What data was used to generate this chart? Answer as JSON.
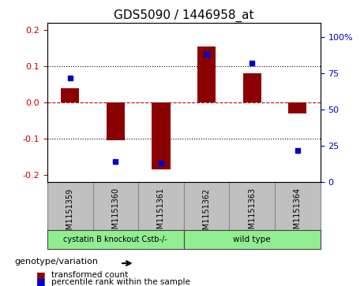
{
  "title": "GDS5090 / 1446958_at",
  "samples": [
    "GSM1151359",
    "GSM1151360",
    "GSM1151361",
    "GSM1151362",
    "GSM1151363",
    "GSM1151364"
  ],
  "transformed_count": [
    0.04,
    -0.105,
    -0.185,
    0.155,
    0.08,
    -0.03
  ],
  "percentile_rank": [
    72,
    14,
    13,
    88,
    82,
    22
  ],
  "ylim_left": [
    -0.22,
    0.22
  ],
  "ylim_right": [
    0,
    110
  ],
  "yticks_left": [
    -0.2,
    -0.1,
    0.0,
    0.1,
    0.2
  ],
  "yticks_right": [
    0,
    25,
    50,
    75,
    100
  ],
  "ytick_labels_right": [
    "0",
    "25",
    "50",
    "75",
    "100%"
  ],
  "groups": [
    {
      "label": "cystatin B knockout Cstb-/-",
      "samples": [
        0,
        1,
        2
      ],
      "color": "#90EE90"
    },
    {
      "label": "wild type",
      "samples": [
        3,
        4,
        5
      ],
      "color": "#90EE90"
    }
  ],
  "group_colors": [
    "#90EE90",
    "#90EE90"
  ],
  "bar_color": "#8B0000",
  "dot_color": "#0000CD",
  "bar_width": 0.4,
  "zero_line_color": "#CC0000",
  "grid_color": "black",
  "bg_color": "#ffffff",
  "plot_bg_color": "#ffffff",
  "sample_bg_color": "#C0C0C0",
  "legend_red_label": "transformed count",
  "legend_blue_label": "percentile rank within the sample",
  "genotype_label": "genotype/variation",
  "dotted_line_color": "black"
}
